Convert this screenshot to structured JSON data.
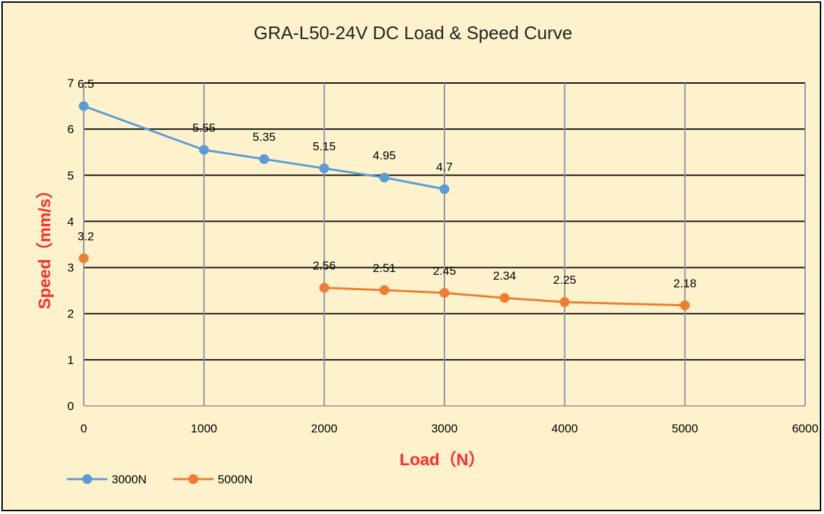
{
  "chart_data": {
    "type": "line",
    "title": "GRA-L50-24V DC Load & Speed Curve",
    "xlabel": "Load（N）",
    "ylabel": "Speed（mm/s）",
    "xlim": [
      0,
      6000
    ],
    "ylim": [
      0,
      7
    ],
    "xticks": [
      0,
      1000,
      2000,
      3000,
      4000,
      5000,
      6000
    ],
    "yticks": [
      0,
      1,
      2,
      3,
      4,
      5,
      6,
      7
    ],
    "xtick_labels": [
      "0",
      "1000",
      "2000",
      "3000",
      "4000",
      "5000",
      "6000"
    ],
    "ytick_labels": [
      "0",
      "1",
      "2",
      "3",
      "4",
      "5",
      "6",
      "7"
    ],
    "grid": true,
    "legend_position": "bottom-left",
    "series": [
      {
        "name": "3000N",
        "color": "#5b9bd5",
        "x": [
          0,
          1000,
          1500,
          2000,
          2500,
          3000
        ],
        "y": [
          6.5,
          5.55,
          5.35,
          5.15,
          4.95,
          4.7
        ],
        "labels": [
          "6.5",
          "5.55",
          "5.35",
          "5.15",
          "4.95",
          "4.7"
        ]
      },
      {
        "name": "5000N",
        "color": "#ed7d31",
        "x": [
          0,
          2000,
          2500,
          3000,
          3500,
          4000,
          5000
        ],
        "y": [
          3.2,
          2.56,
          2.51,
          2.45,
          2.34,
          2.25,
          2.18
        ],
        "labels": [
          "3.2",
          "2.56",
          "2.51",
          "2.45",
          "2.34",
          "2.25",
          "2.18"
        ],
        "segments": [
          [
            0
          ],
          [
            1,
            2,
            3,
            4,
            5,
            6
          ]
        ]
      }
    ]
  }
}
